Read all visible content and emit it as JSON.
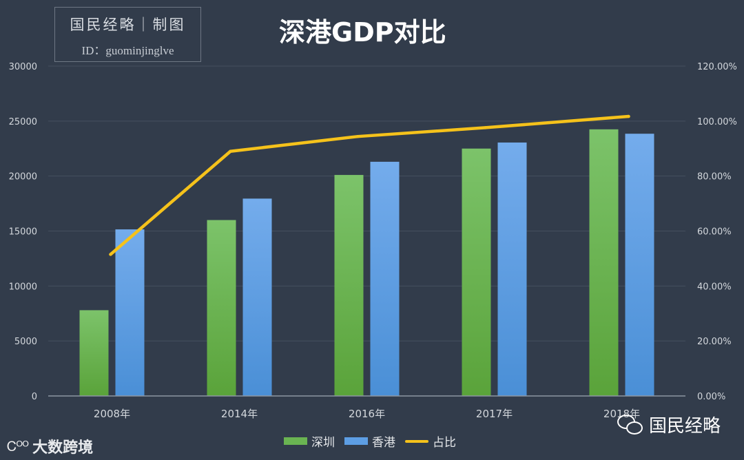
{
  "watermark_box": {
    "title": "国民经略｜制图",
    "id_text": "ID：guominjinglve"
  },
  "footer": {
    "left_logo": "大数跨境",
    "right_logo": "国民经略"
  },
  "colors": {
    "background": "#323c4b",
    "gridline": "#46505f",
    "axis": "#8c96a2",
    "tick_text": "#d4d8dd",
    "shenzhen_top": "#7cc36a",
    "shenzhen_bottom": "#5aa33a",
    "hongkong_top": "#74acec",
    "hongkong_bottom": "#4a8fd6",
    "ratio_line": "#f5c21b"
  },
  "chart_data": {
    "type": "bar",
    "title": "深港GDP对比",
    "categories": [
      "2008年",
      "2014年",
      "2016年",
      "2017年",
      "2018年"
    ],
    "series": [
      {
        "name": "深圳",
        "axis": "left",
        "type": "bar",
        "values": [
          7800,
          16000,
          20100,
          22500,
          24250
        ]
      },
      {
        "name": "香港",
        "axis": "left",
        "type": "bar",
        "values": [
          15150,
          17950,
          21300,
          23050,
          23850
        ]
      },
      {
        "name": "占比",
        "axis": "right",
        "type": "line",
        "values": [
          51.5,
          89.0,
          94.4,
          97.6,
          101.7
        ]
      }
    ],
    "y_left": {
      "min": 0,
      "max": 30000,
      "ticks": [
        0,
        5000,
        10000,
        15000,
        20000,
        25000,
        30000
      ],
      "labels": [
        "0",
        "5000",
        "10000",
        "15000",
        "20000",
        "25000",
        "30000"
      ]
    },
    "y_right": {
      "min": 0,
      "max": 120,
      "ticks": [
        0,
        20,
        40,
        60,
        80,
        100,
        120
      ],
      "labels": [
        "0.00%",
        "20.00%",
        "40.00%",
        "60.00%",
        "80.00%",
        "100.00%",
        "120.00%"
      ]
    },
    "grid": true,
    "legend": "bottom-center"
  }
}
